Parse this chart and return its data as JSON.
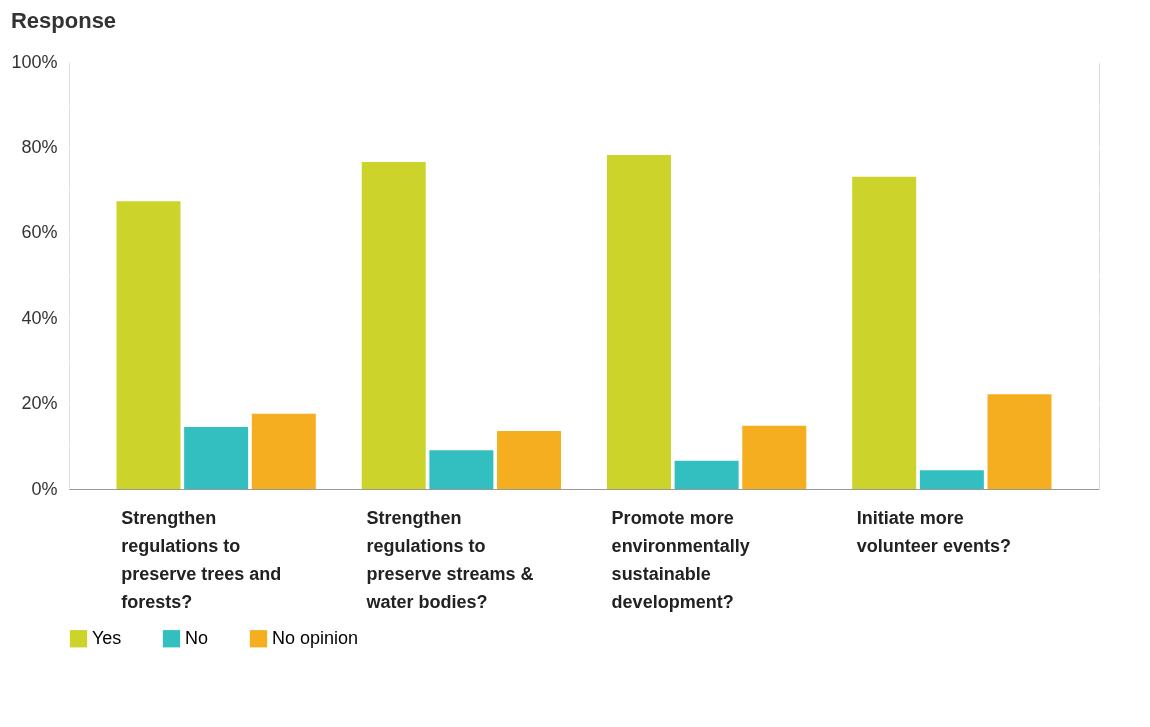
{
  "chart_data": {
    "type": "bar",
    "title": "Response",
    "categories": [
      "Strengthen regulations to preserve trees and forests?",
      "Strengthen regulations to preserve streams & water bodies?",
      "Promote more environmentally sustainable development?",
      "Initiate more volunteer events?"
    ],
    "series": [
      {
        "name": "Yes",
        "color": "#ccd42c",
        "values": [
          67.4,
          76.6,
          78.2,
          73.1
        ]
      },
      {
        "name": "No",
        "color": "#33bfbf",
        "values": [
          14.5,
          9.1,
          6.6,
          4.4
        ]
      },
      {
        "name": "No opinion",
        "color": "#f5ae1f",
        "values": [
          17.6,
          13.6,
          14.8,
          22.2
        ]
      }
    ],
    "ylim": [
      0,
      100
    ],
    "yticks": [
      {
        "value": 0,
        "label": "0%"
      },
      {
        "value": 10,
        "label": null
      },
      {
        "value": 20,
        "label": "20%"
      },
      {
        "value": 30,
        "label": null
      },
      {
        "value": 40,
        "label": "40%"
      },
      {
        "value": 50,
        "label": null
      },
      {
        "value": 60,
        "label": "60%"
      },
      {
        "value": 70,
        "label": null
      },
      {
        "value": 80,
        "label": "80%"
      },
      {
        "value": 90,
        "label": null
      },
      {
        "value": 100,
        "label": "100%"
      }
    ],
    "grid": "y",
    "legend": "bottom"
  }
}
